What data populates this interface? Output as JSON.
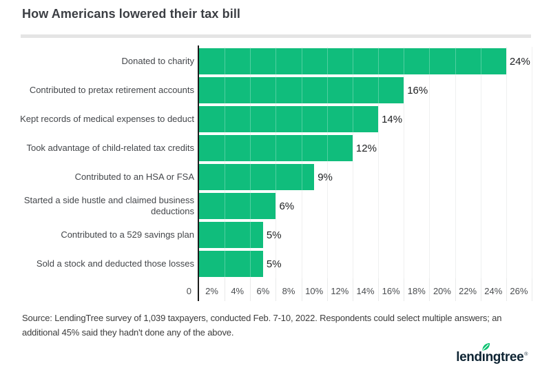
{
  "title": "How Americans lowered their tax bill",
  "chart_data": {
    "type": "bar",
    "orientation": "horizontal",
    "title": "How Americans lowered their tax bill",
    "categories": [
      "Donated to charity",
      "Contributed to pretax retirement accounts",
      "Kept records of medical expenses to deduct",
      "Took advantage of child-related tax credits",
      "Contributed to an HSA or FSA",
      "Started a side hustle and claimed business deductions",
      "Contributed to a 529 savings plan",
      "Sold a stock and deducted those losses"
    ],
    "values": [
      24,
      16,
      14,
      12,
      9,
      6,
      5,
      5
    ],
    "value_labels": [
      "24%",
      "16%",
      "14%",
      "12%",
      "9%",
      "6%",
      "5%",
      "5%"
    ],
    "xlim": [
      0,
      26
    ],
    "x_ticks": [
      {
        "label": "0",
        "value": 0
      },
      {
        "label": "2%",
        "value": 2
      },
      {
        "label": "4%",
        "value": 4
      },
      {
        "label": "6%",
        "value": 6
      },
      {
        "label": "8%",
        "value": 8
      },
      {
        "label": "10%",
        "value": 10
      },
      {
        "label": "12%",
        "value": 12
      },
      {
        "label": "14%",
        "value": 14
      },
      {
        "label": "16%",
        "value": 16
      },
      {
        "label": "18%",
        "value": 18
      },
      {
        "label": "20%",
        "value": 20
      },
      {
        "label": "22%",
        "value": 22
      },
      {
        "label": "24%",
        "value": 24
      },
      {
        "label": "26%",
        "value": 26
      }
    ],
    "grid": true,
    "legend": false,
    "bar_color": "#10bd7c"
  },
  "source": {
    "lines": [
      "Source: LendingTree survey of 1,039 taxpayers, conducted Feb. 7-10, 2022. Respondents could select multiple answers; an",
      "additional 45% said they hadn't done any of the above."
    ]
  },
  "branding": {
    "logo_prefix": "lend",
    "logo_dotless_i": "ı",
    "logo_suffix": "ngtree",
    "registered": "®",
    "navy": "#0e2433",
    "leaf_color": "#00c06c"
  }
}
